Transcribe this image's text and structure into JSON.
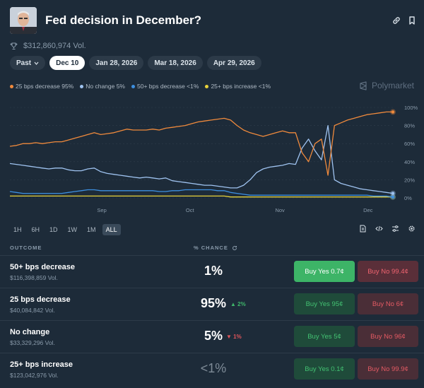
{
  "header": {
    "title": "Fed decision in December?",
    "volume": "$312,860,974 Vol."
  },
  "date_tabs": [
    {
      "label": "Past"
    },
    {
      "label": "Dec 10"
    },
    {
      "label": "Jan 28, 2026"
    },
    {
      "label": "Mar 18, 2026"
    },
    {
      "label": "Apr 29, 2026"
    }
  ],
  "brand": "Polymarket",
  "colors": {
    "bg": "#1d2b39",
    "decrease25": "#f08a3c",
    "nochange": "#9fc3f0",
    "decrease50": "#3d8fe0",
    "increase25": "#e8d23a",
    "yes": "#43c272",
    "no": "#e35a63"
  },
  "chart_data": {
    "type": "line",
    "x_ticks": [
      "Sep",
      "Oct",
      "Nov",
      "Dec"
    ],
    "y_ticks": [
      "0%",
      "20%",
      "40%",
      "60%",
      "80%",
      "100%"
    ],
    "ylim": [
      0,
      100
    ],
    "legend": [
      "25 bps decrease 95%",
      "No change 5%",
      "50+ bps decrease <1%",
      "25+ bps increase <1%"
    ],
    "series": [
      {
        "name": "25 bps decrease",
        "color": "#f08a3c",
        "values": [
          57,
          58,
          60,
          60,
          61,
          60,
          61,
          62,
          62,
          64,
          66,
          68,
          70,
          72,
          70,
          71,
          72,
          74,
          76,
          75,
          75,
          75,
          76,
          75,
          77,
          78,
          79,
          80,
          82,
          84,
          85,
          86,
          87,
          88,
          86,
          80,
          75,
          72,
          70,
          68,
          70,
          72,
          74,
          72,
          72,
          50,
          40,
          60,
          65,
          25,
          80,
          83,
          86,
          88,
          90,
          92,
          93,
          94,
          95,
          95
        ]
      },
      {
        "name": "No change",
        "color": "#9fc3f0",
        "values": [
          38,
          37,
          36,
          35,
          34,
          33,
          32,
          33,
          33,
          31,
          30,
          30,
          32,
          33,
          29,
          27,
          26,
          25,
          24,
          23,
          22,
          23,
          22,
          21,
          22,
          19,
          18,
          17,
          16,
          15,
          14,
          14,
          13,
          12,
          11,
          11,
          14,
          20,
          28,
          32,
          34,
          35,
          36,
          38,
          37,
          55,
          65,
          52,
          42,
          80,
          20,
          16,
          14,
          12,
          10,
          9,
          8,
          7,
          6,
          5
        ]
      },
      {
        "name": "50+ bps decrease",
        "color": "#3d8fe0",
        "values": [
          7,
          6,
          5,
          5,
          5,
          5,
          5,
          5,
          5,
          6,
          7,
          8,
          9,
          9,
          8,
          8,
          8,
          8,
          8,
          8,
          8,
          8,
          8,
          7,
          7,
          8,
          8,
          9,
          9,
          9,
          9,
          9,
          8,
          8,
          6,
          5,
          4,
          3,
          3,
          3,
          3,
          3,
          3,
          3,
          3,
          3,
          3,
          3,
          3,
          3,
          3,
          3,
          3,
          3,
          3,
          3,
          2,
          2,
          2,
          1
        ]
      },
      {
        "name": "25+ bps increase",
        "color": "#e8d23a",
        "values": [
          2,
          2,
          2,
          2,
          2,
          2,
          2,
          2,
          2,
          2,
          2,
          2,
          2,
          2,
          2,
          2,
          2,
          2,
          2,
          2,
          2,
          2,
          2,
          2,
          2,
          2,
          2,
          2,
          2,
          2,
          2,
          2,
          2,
          2,
          1,
          1,
          1,
          1,
          1,
          1,
          1,
          1,
          1,
          1,
          1,
          1,
          1,
          1,
          1,
          1,
          1,
          1,
          1,
          1,
          1,
          1,
          1,
          1,
          1,
          1
        ]
      }
    ]
  },
  "ranges": [
    "1H",
    "6H",
    "1D",
    "1W",
    "1M",
    "ALL"
  ],
  "table": {
    "outcome_header": "OUTCOME",
    "chance_header": "% CHANCE",
    "rows": [
      {
        "name": "50+ bps decrease",
        "volume": "$116,398,859 Vol.",
        "chance": "1%",
        "change": "",
        "yes": "Buy Yes 0.7¢",
        "no": "Buy No 99.4¢"
      },
      {
        "name": "25 bps decrease",
        "volume": "$40,084,842 Vol.",
        "chance": "95%",
        "change": "▲ 2%",
        "yes": "Buy Yes 95¢",
        "no": "Buy No 6¢"
      },
      {
        "name": "No change",
        "volume": "$33,329,296 Vol.",
        "chance": "5%",
        "change": "▼ 1%",
        "yes": "Buy Yes 5¢",
        "no": "Buy No 96¢"
      },
      {
        "name": "25+ bps increase",
        "volume": "$123,042,976 Vol.",
        "chance": "<1%",
        "change": "",
        "yes": "Buy Yes 0.1¢",
        "no": "Buy No 99.9¢"
      }
    ]
  }
}
